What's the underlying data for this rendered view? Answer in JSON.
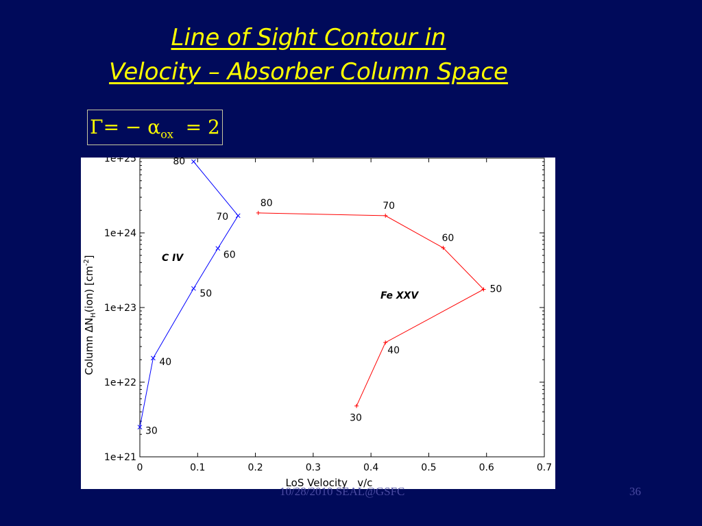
{
  "slide": {
    "title_line1": "Line of Sight Contour in",
    "title_line2": "Velocity – Absorber  Column Space",
    "formula": {
      "lhs": "Γ= − α",
      "sub": "ox",
      "rhs": "  = 2"
    },
    "footer_date": "10/28/2010 SEAL@GSFC",
    "page_number": "36",
    "colors": {
      "background": "#000a5a",
      "title": "#ffff00"
    }
  },
  "chart_data": {
    "type": "line",
    "xlabel": "LoS Velocity   v/c",
    "ylabel": "Column ΔN_H(ion) [cm^-2]",
    "xlim": [
      0,
      0.7
    ],
    "ylim": [
      1e+21,
      1e+25
    ],
    "yscale": "log",
    "x_ticks": [
      "0",
      "0.1",
      "0.2",
      "0.3",
      "0.4",
      "0.5",
      "0.6",
      "0.7"
    ],
    "y_ticks": [
      "1e+21",
      "1e+22",
      "1e+23",
      "1e+24",
      "1e+25"
    ],
    "series": [
      {
        "name": "C IV",
        "color": "#0000ff",
        "marker": "x",
        "points": [
          {
            "x": 0.0,
            "y": 2.5e+21,
            "label": "30"
          },
          {
            "x": 0.023,
            "y": 2.1e+22,
            "label": "40"
          },
          {
            "x": 0.093,
            "y": 1.8e+23,
            "label": "50"
          },
          {
            "x": 0.135,
            "y": 6.2e+23,
            "label": "60"
          },
          {
            "x": 0.17,
            "y": 1.7e+24,
            "label": "70"
          },
          {
            "x": 0.093,
            "y": 9e+24,
            "label": "80"
          }
        ]
      },
      {
        "name": "Fe XXV",
        "color": "#ff0000",
        "marker": "+",
        "points": [
          {
            "x": 0.375,
            "y": 4.8e+21,
            "label": "30"
          },
          {
            "x": 0.425,
            "y": 3.4e+22,
            "label": "40"
          },
          {
            "x": 0.595,
            "y": 1.75e+23,
            "label": "50"
          },
          {
            "x": 0.525,
            "y": 6.3e+23,
            "label": "60"
          },
          {
            "x": 0.425,
            "y": 1.7e+24,
            "label": "70"
          },
          {
            "x": 0.205,
            "y": 1.85e+24,
            "label": "80"
          }
        ]
      }
    ]
  }
}
